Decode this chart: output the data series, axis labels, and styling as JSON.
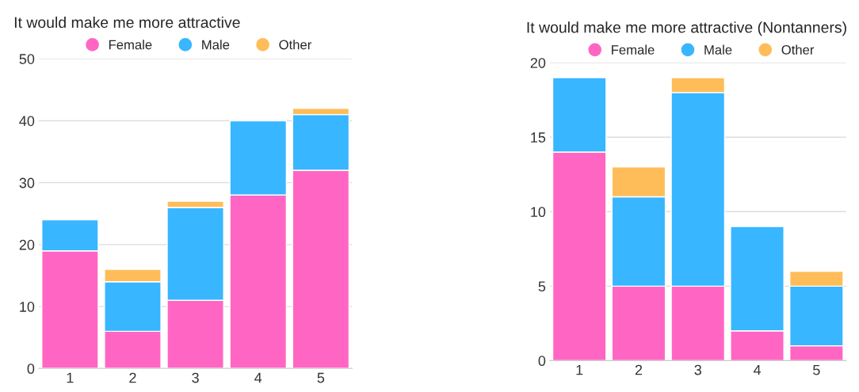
{
  "chart_data": [
    {
      "type": "bar",
      "title": "It would make me more attractive",
      "categories": [
        "1",
        "2",
        "3",
        "4",
        "5"
      ],
      "stacked": true,
      "ylim": [
        0,
        50
      ],
      "yticks": [
        0,
        10,
        20,
        30,
        40,
        50
      ],
      "grid": "y",
      "legend": "top",
      "series": [
        {
          "name": "Female",
          "color": "#ff66c4",
          "values": [
            19,
            6,
            11,
            28,
            32
          ]
        },
        {
          "name": "Male",
          "color": "#38b6ff",
          "values": [
            5,
            8,
            15,
            12,
            9
          ]
        },
        {
          "name": "Other",
          "color": "#ffbd59",
          "values": [
            null,
            2,
            1,
            null,
            1
          ]
        }
      ]
    },
    {
      "type": "bar",
      "title": "It would make me more attractive (Nontanners)",
      "categories": [
        "1",
        "2",
        "3",
        "4",
        "5"
      ],
      "stacked": true,
      "ylim": [
        0,
        20
      ],
      "yticks": [
        0,
        5,
        10,
        15,
        20
      ],
      "grid": "y",
      "legend": "top",
      "series": [
        {
          "name": "Female",
          "color": "#ff66c4",
          "values": [
            14,
            5,
            5,
            2,
            1
          ]
        },
        {
          "name": "Male",
          "color": "#38b6ff",
          "values": [
            5,
            6,
            13,
            7,
            4
          ]
        },
        {
          "name": "Other",
          "color": "#ffbd59",
          "values": [
            null,
            2,
            1,
            null,
            1
          ]
        }
      ]
    }
  ]
}
